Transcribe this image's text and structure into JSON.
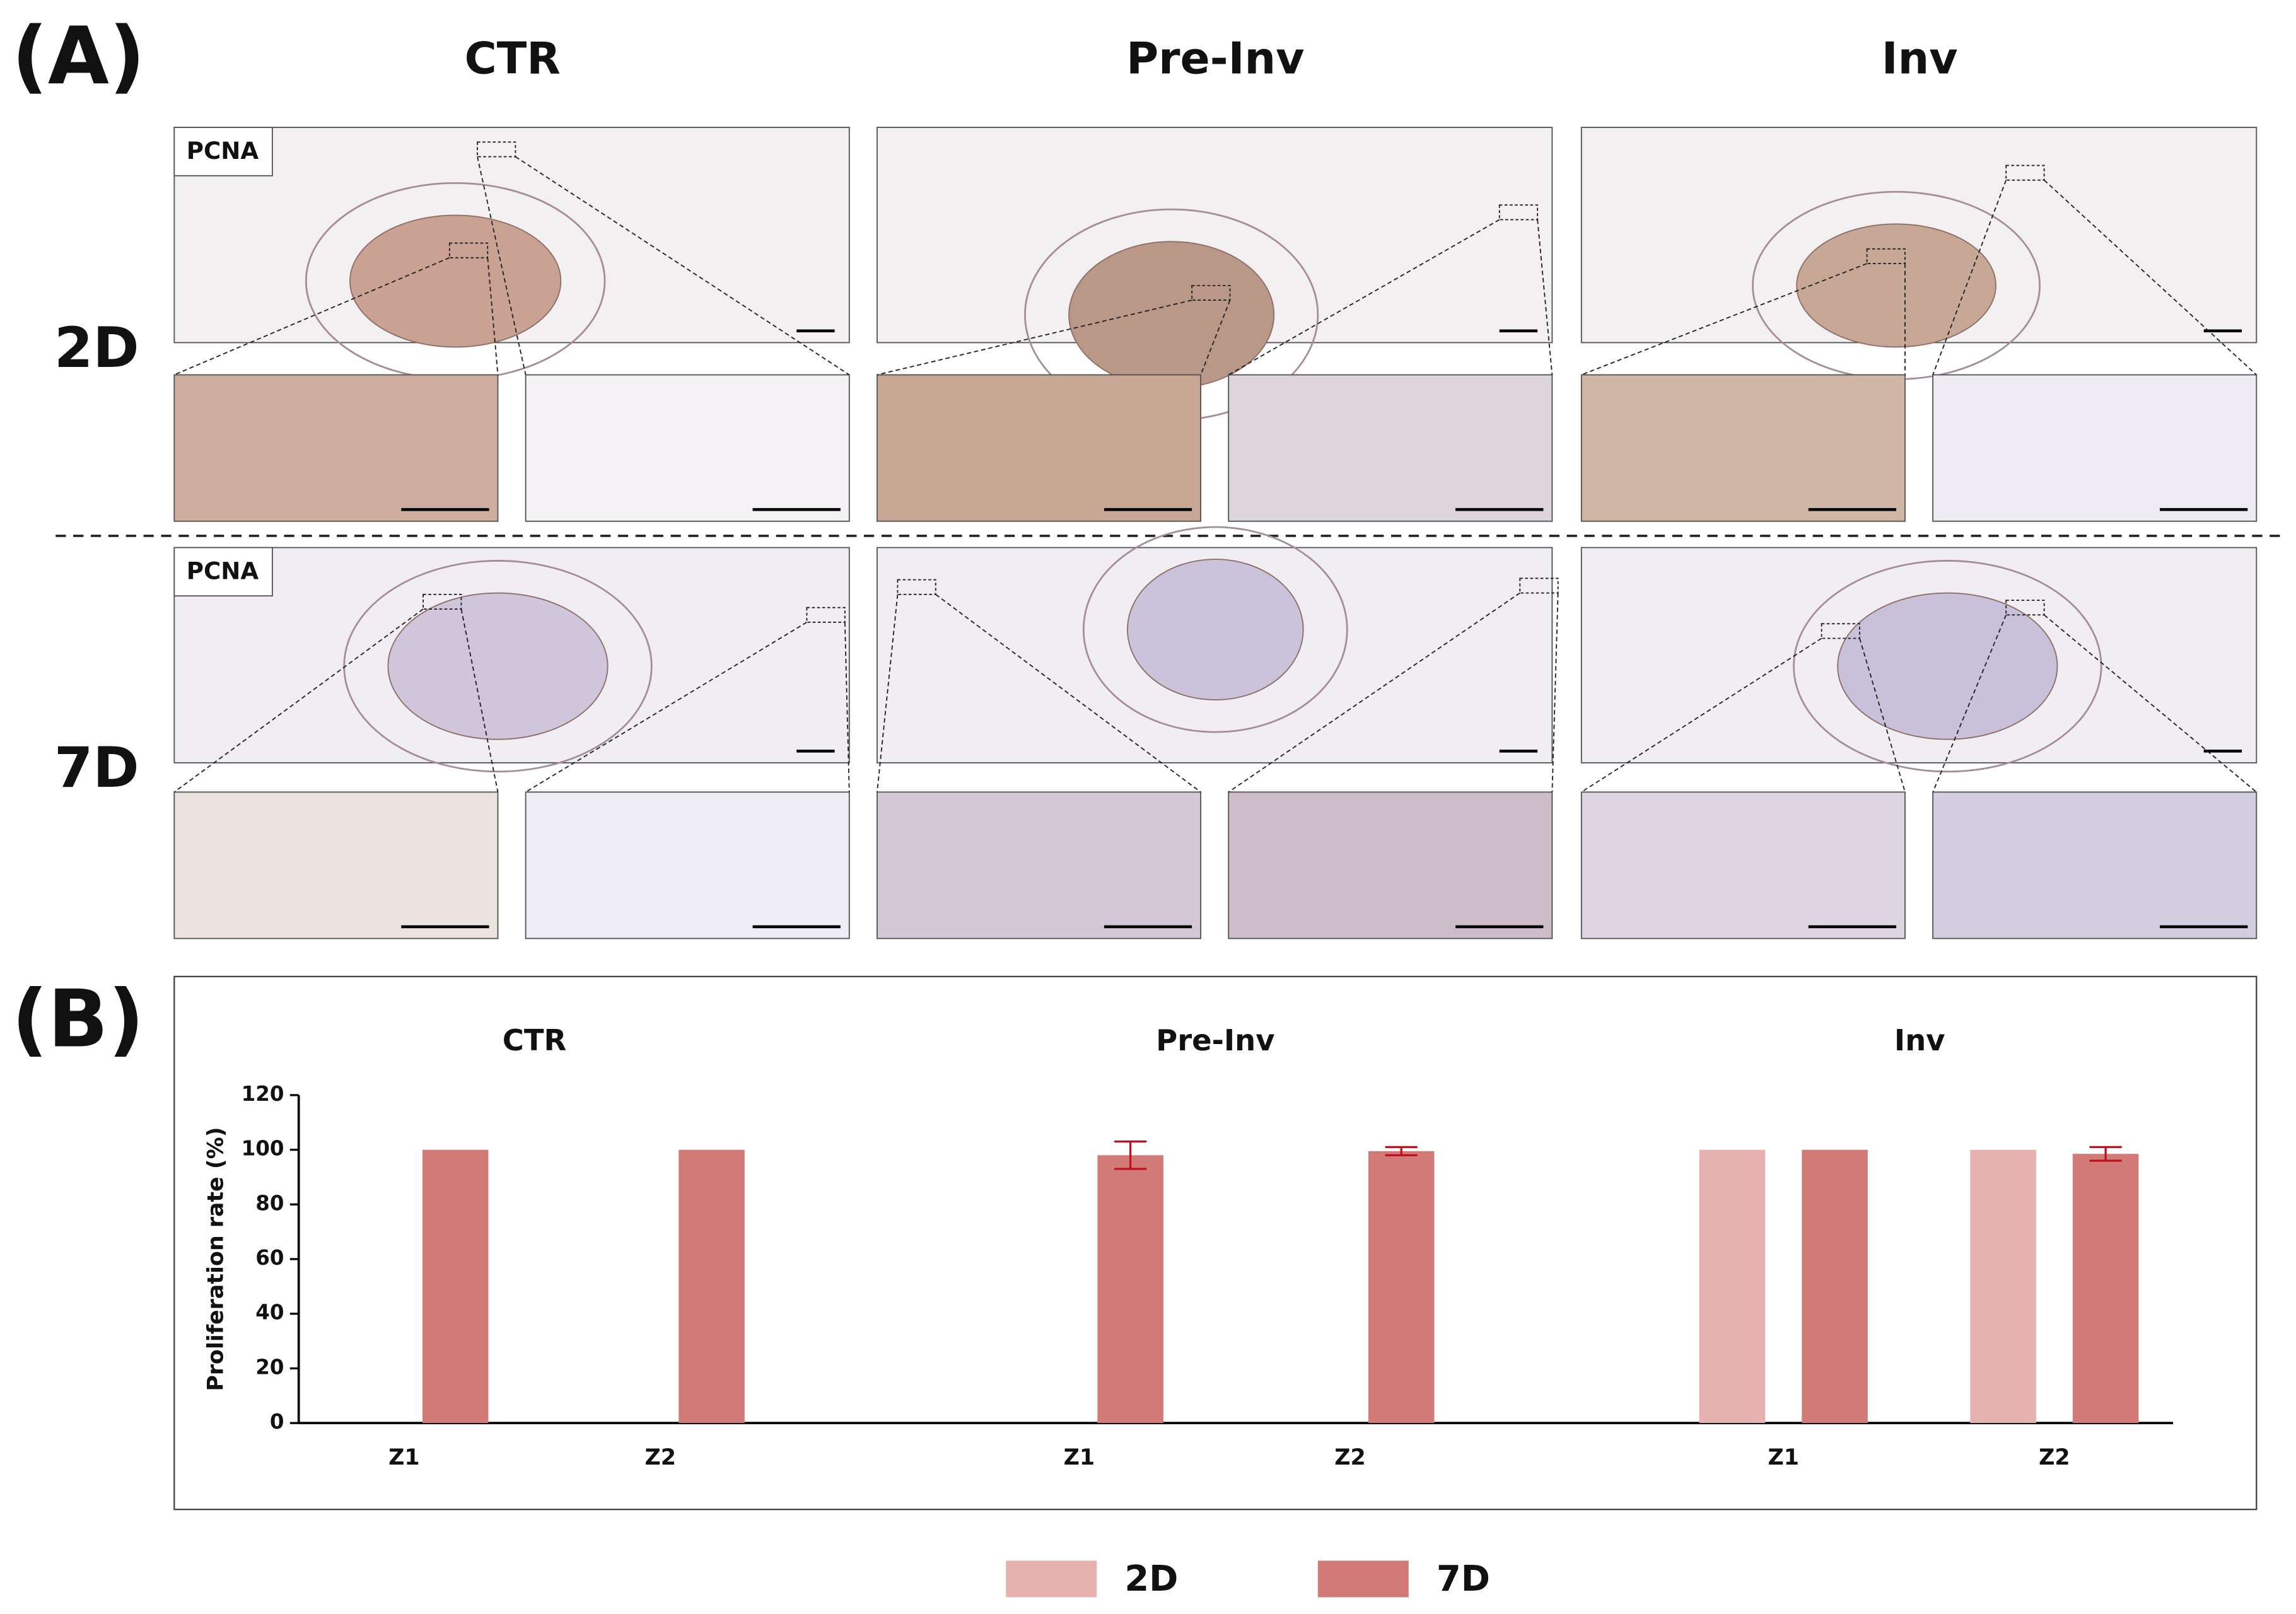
{
  "panel_a": {
    "label": "(A)",
    "columns": [
      "CTR",
      "Pre-Inv",
      "Inv"
    ],
    "rows": [
      "2D",
      "7D"
    ],
    "stain_label": "PCNA"
  },
  "chart_data": {
    "type": "bar",
    "panel_label": "(B)",
    "groups": [
      "CTR",
      "Pre-Inv",
      "Inv"
    ],
    "categories": [
      "Z1",
      "Z2",
      "Z1",
      "Z2",
      "Z1",
      "Z2"
    ],
    "ylabel": "Proliferation rate (%)",
    "ylim": [
      0,
      120
    ],
    "yticks": [
      0,
      20,
      40,
      60,
      80,
      100,
      120
    ],
    "series": [
      {
        "name": "2D",
        "color": "#e6b1ae",
        "values": [
          0,
          0,
          0,
          0,
          100,
          100
        ],
        "errors": [
          null,
          null,
          null,
          null,
          null,
          null
        ]
      },
      {
        "name": "7D",
        "color": "#d27a78",
        "values": [
          100,
          100,
          98,
          99.5,
          100,
          98.5
        ],
        "errors": [
          null,
          null,
          5,
          1.5,
          null,
          2.5
        ]
      }
    ],
    "error_color": "#c0101e"
  }
}
